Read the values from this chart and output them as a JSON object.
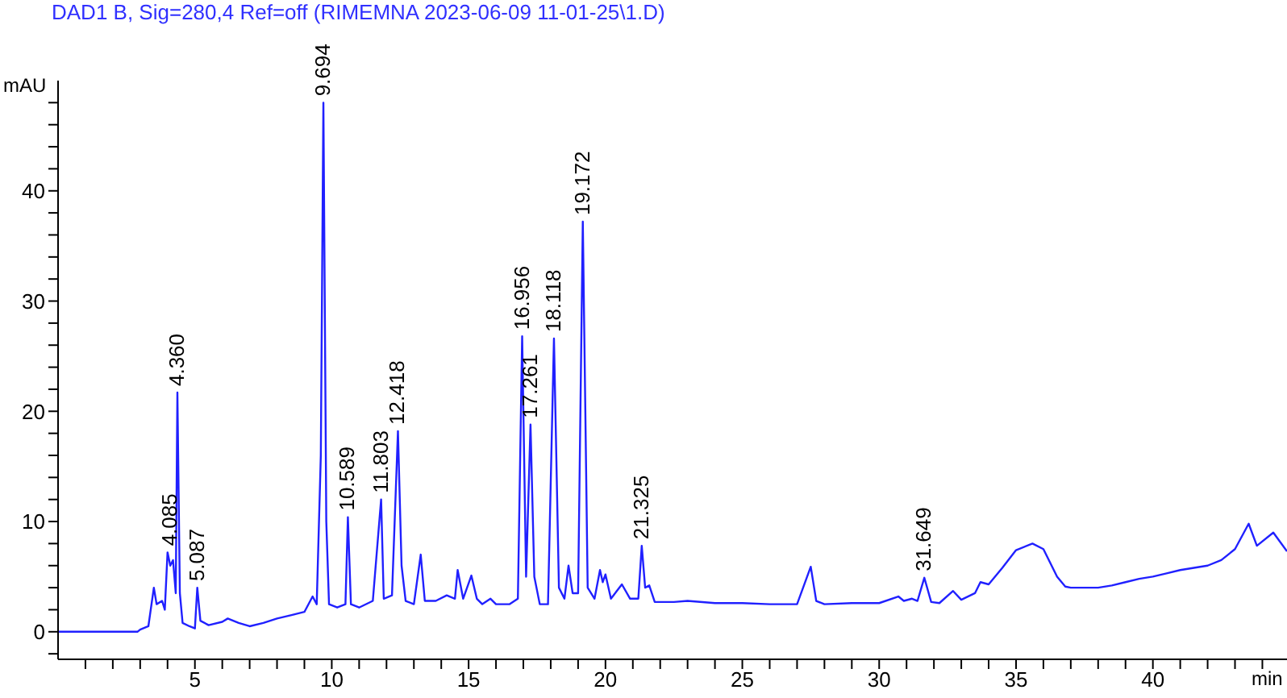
{
  "chart_data": {
    "type": "line",
    "title": "DAD1 B, Sig=280,4 Ref=off (RIMEMNA 2023-06-09 11-01-25\\1.D)",
    "xlabel": "min",
    "ylabel": "mAU",
    "x": [
      0,
      2.9,
      3.0,
      3.3,
      3.5,
      3.6,
      3.8,
      3.9,
      4.0,
      4.1,
      4.2,
      4.3,
      4.36,
      4.45,
      4.55,
      4.8,
      5.0,
      5.087,
      5.2,
      5.5,
      6.0,
      6.2,
      6.6,
      7.0,
      7.5,
      8.0,
      8.5,
      9.0,
      9.3,
      9.45,
      9.6,
      9.694,
      9.8,
      9.9,
      10.2,
      10.5,
      10.589,
      10.7,
      11.0,
      11.5,
      11.803,
      11.9,
      12.2,
      12.418,
      12.55,
      12.7,
      13.0,
      13.25,
      13.4,
      13.8,
      14.2,
      14.5,
      14.6,
      14.8,
      15.1,
      15.3,
      15.5,
      15.8,
      16.0,
      16.5,
      16.8,
      16.956,
      17.1,
      17.261,
      17.4,
      17.6,
      17.9,
      18.118,
      18.3,
      18.5,
      18.65,
      18.8,
      19.0,
      19.172,
      19.35,
      19.6,
      19.8,
      19.9,
      20.0,
      20.2,
      20.6,
      20.9,
      21.2,
      21.325,
      21.45,
      21.6,
      21.8,
      22.5,
      23,
      24,
      25,
      26,
      27,
      27.5,
      27.7,
      28,
      29,
      30,
      30.7,
      30.9,
      31.2,
      31.4,
      31.649,
      31.9,
      32.2,
      32.7,
      33,
      33.5,
      33.7,
      34,
      34.5,
      35,
      35.6,
      36,
      36.5,
      36.8,
      37,
      38,
      38.5,
      39,
      39.5,
      40,
      40.5,
      41,
      41.5,
      42,
      42.5,
      43,
      43.5,
      43.8,
      44.4,
      44.9
    ],
    "series": [
      {
        "color": "#2020ff",
        "values": [
          0,
          0,
          0.2,
          0.5,
          4,
          2.5,
          2.8,
          2,
          7.2,
          6,
          6.5,
          3.5,
          21.7,
          3.5,
          0.8,
          0.5,
          0.3,
          4,
          1,
          0.6,
          0.9,
          1.2,
          0.8,
          0.5,
          0.8,
          1.2,
          1.5,
          1.8,
          3.2,
          2.5,
          16,
          48,
          10,
          2.5,
          2.2,
          2.5,
          10.4,
          2.5,
          2.2,
          2.8,
          12,
          3,
          3.3,
          18.2,
          6,
          2.8,
          2.5,
          7,
          2.8,
          2.8,
          3.3,
          3,
          5.6,
          3,
          5.1,
          3,
          2.5,
          3,
          2.5,
          2.5,
          3,
          26.8,
          5,
          18.8,
          5,
          2.5,
          2.5,
          26.6,
          4,
          3,
          6,
          3.5,
          3.5,
          37.2,
          4,
          3,
          5.6,
          4.5,
          5.2,
          3,
          4.3,
          3,
          3,
          7.8,
          4,
          4.2,
          2.7,
          2.7,
          2.8,
          2.6,
          2.6,
          2.5,
          2.5,
          5.9,
          2.8,
          2.5,
          2.6,
          2.6,
          3.2,
          2.8,
          3,
          2.8,
          4.9,
          2.7,
          2.6,
          3.7,
          2.9,
          3.5,
          4.5,
          4.3,
          5.8,
          7.4,
          8,
          7.5,
          5,
          4.1,
          4,
          4,
          4.2,
          4.5,
          4.8,
          5,
          5.3,
          5.6,
          5.8,
          6,
          6.5,
          7.5,
          9.8,
          7.8,
          9,
          7.3
        ]
      }
    ],
    "annotations": [
      {
        "text": "4.085",
        "x": 4.085,
        "y": 7.2
      },
      {
        "text": "4.360",
        "x": 4.36,
        "y": 21.7
      },
      {
        "text": "5.087",
        "x": 5.087,
        "y": 4
      },
      {
        "text": "9.694",
        "x": 9.694,
        "y": 48
      },
      {
        "text": "10.589",
        "x": 10.589,
        "y": 10.4
      },
      {
        "text": "11.803",
        "x": 11.803,
        "y": 12
      },
      {
        "text": "12.418",
        "x": 12.418,
        "y": 18.2
      },
      {
        "text": "16.956",
        "x": 16.956,
        "y": 26.8
      },
      {
        "text": "17.261",
        "x": 17.261,
        "y": 18.8
      },
      {
        "text": "18.118",
        "x": 18.118,
        "y": 26.6
      },
      {
        "text": "19.172",
        "x": 19.172,
        "y": 37.2
      },
      {
        "text": "21.325",
        "x": 21.325,
        "y": 7.8
      },
      {
        "text": "31.649",
        "x": 31.649,
        "y": 4.9
      }
    ],
    "xlim": [
      0,
      44.9
    ],
    "xticks": [
      {
        "value": 1,
        "label": null
      },
      {
        "value": 2,
        "label": null
      },
      {
        "value": 3,
        "label": null
      },
      {
        "value": 4,
        "label": null
      },
      5,
      {
        "value": 6,
        "label": null
      },
      {
        "value": 7,
        "label": null
      },
      {
        "value": 8,
        "label": null
      },
      {
        "value": 9,
        "label": null
      },
      10,
      {
        "value": 11,
        "label": null
      },
      {
        "value": 12,
        "label": null
      },
      {
        "value": 13,
        "label": null
      },
      {
        "value": 14,
        "label": null
      },
      15,
      {
        "value": 16,
        "label": null
      },
      {
        "value": 17,
        "label": null
      },
      {
        "value": 18,
        "label": null
      },
      {
        "value": 19,
        "label": null
      },
      20,
      {
        "value": 21,
        "label": null
      },
      {
        "value": 22,
        "label": null
      },
      {
        "value": 23,
        "label": null
      },
      {
        "value": 24,
        "label": null
      },
      25,
      {
        "value": 26,
        "label": null
      },
      {
        "value": 27,
        "label": null
      },
      {
        "value": 28,
        "label": null
      },
      {
        "value": 29,
        "label": null
      },
      30,
      {
        "value": 31,
        "label": null
      },
      {
        "value": 32,
        "label": null
      },
      {
        "value": 33,
        "label": null
      },
      {
        "value": 34,
        "label": null
      },
      35,
      {
        "value": 36,
        "label": null
      },
      {
        "value": 37,
        "label": null
      },
      {
        "value": 38,
        "label": null
      },
      {
        "value": 39,
        "label": null
      },
      40,
      {
        "value": 41,
        "label": null
      },
      {
        "value": 42,
        "label": null
      },
      {
        "value": 43,
        "label": null
      },
      {
        "value": 44,
        "label": null
      }
    ],
    "ylim": [
      -2.5,
      50
    ],
    "yticks": [
      {
        "value": -2,
        "label": null
      },
      0,
      {
        "value": 2,
        "label": null
      },
      {
        "value": 4,
        "label": null
      },
      {
        "value": 6,
        "label": null
      },
      {
        "value": 8,
        "label": null
      },
      10,
      {
        "value": 12,
        "label": null
      },
      {
        "value": 14,
        "label": null
      },
      {
        "value": 16,
        "label": null
      },
      {
        "value": 18,
        "label": null
      },
      20,
      {
        "value": 22,
        "label": null
      },
      {
        "value": 24,
        "label": null
      },
      {
        "value": 26,
        "label": null
      },
      {
        "value": 28,
        "label": null
      },
      30,
      {
        "value": 32,
        "label": null
      },
      {
        "value": 34,
        "label": null
      },
      {
        "value": 36,
        "label": null
      },
      {
        "value": 38,
        "label": null
      },
      40,
      {
        "value": 42,
        "label": null
      },
      {
        "value": 44,
        "label": null
      },
      {
        "value": 46,
        "label": null
      },
      {
        "value": 48,
        "label": null
      }
    ],
    "grid": false,
    "legend": false,
    "marker": "none",
    "line_style": "solid"
  }
}
